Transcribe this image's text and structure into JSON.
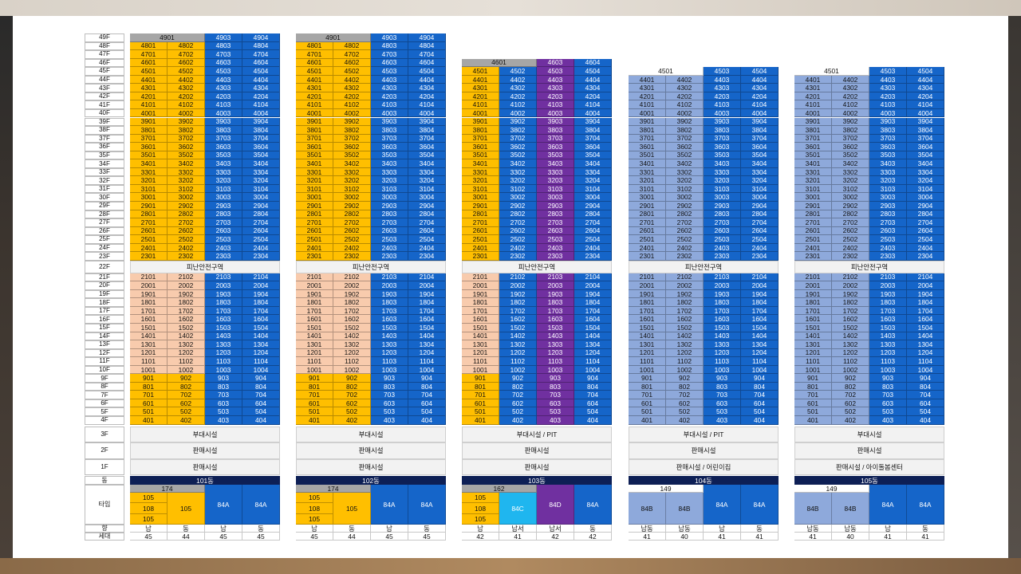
{
  "colors": {
    "yellow": "#ffbf00",
    "blue": "#1565c9",
    "gray": "#a6a6a6",
    "purple": "#7030a0",
    "cyan": "#1fb6ef",
    "lavender": "#8ea9db",
    "peach": "#f8cbad",
    "navy": "#0d1f55"
  },
  "floors": [
    "49F",
    "48F",
    "47F",
    "46F",
    "45F",
    "44F",
    "43F",
    "42F",
    "41F",
    "40F",
    "39F",
    "38F",
    "37F",
    "36F",
    "35F",
    "34F",
    "33F",
    "32F",
    "31F",
    "30F",
    "29F",
    "28F",
    "27F",
    "26F",
    "25F",
    "24F",
    "23F",
    "22F",
    "21F",
    "20F",
    "19F",
    "18F",
    "17F",
    "16F",
    "15F",
    "14F",
    "13F",
    "12F",
    "11F",
    "10F",
    "9F",
    "8F",
    "7F",
    "6F",
    "5F",
    "4F",
    "3F",
    "2F",
    "1F",
    "동",
    "타입",
    "향",
    "세대"
  ],
  "buildings": [
    {
      "name": "101동",
      "top_floor": 49,
      "top_label": "4901",
      "upper_colors": [
        "yellow",
        "yellow",
        "blue",
        "blue"
      ],
      "lower_colors": [
        "peach",
        "peach",
        "blue",
        "blue"
      ],
      "bottom_colors": [
        "yellow",
        "yellow",
        "blue",
        "blue"
      ],
      "refuge": "피난안전구역",
      "f3": "부대시설",
      "f2": "판매시설",
      "f1": "판매시설",
      "type_header": "174",
      "types": [
        [
          "105",
          "108",
          "105"
        ],
        [
          "105"
        ],
        [
          "84A"
        ],
        [
          "84A"
        ]
      ],
      "type_colors": [
        "yellow",
        "yellow",
        "blue",
        "blue"
      ],
      "directions": [
        "남",
        "동",
        "남",
        "동"
      ],
      "units": [
        "45",
        "44",
        "45",
        "45"
      ]
    },
    {
      "name": "102동",
      "top_floor": 49,
      "top_label": "4901",
      "upper_colors": [
        "yellow",
        "yellow",
        "blue",
        "blue"
      ],
      "lower_colors": [
        "peach",
        "peach",
        "blue",
        "blue"
      ],
      "bottom_colors": [
        "yellow",
        "yellow",
        "blue",
        "blue"
      ],
      "refuge": "피난안전구역",
      "f3": "부대시설",
      "f2": "판매시설",
      "f1": "판매시설",
      "type_header": "174",
      "types": [
        [
          "105",
          "108",
          "105"
        ],
        [
          "105"
        ],
        [
          "84A"
        ],
        [
          "84A"
        ]
      ],
      "type_colors": [
        "yellow",
        "yellow",
        "blue",
        "blue"
      ],
      "directions": [
        "남",
        "동",
        "남",
        "동"
      ],
      "units": [
        "45",
        "44",
        "45",
        "45"
      ]
    },
    {
      "name": "103동",
      "top_floor": 46,
      "top_label": "4601",
      "upper_colors": [
        "yellow",
        "blue",
        "purple",
        "blue"
      ],
      "lower_colors": [
        "peach",
        "blue",
        "purple",
        "blue"
      ],
      "bottom_colors": [
        "yellow",
        "blue",
        "purple",
        "blue"
      ],
      "refuge": "피난안전구역",
      "f3": "부대시설 / PIT",
      "f2": "판매시설",
      "f1": "판매시설",
      "type_header": "162",
      "types": [
        [
          "105",
          "108",
          "105"
        ],
        [
          "84C"
        ],
        [
          "84D"
        ],
        [
          "84A"
        ]
      ],
      "type_colors": [
        "yellow",
        "cyan",
        "purple",
        "blue"
      ],
      "directions": [
        "남",
        "남서",
        "남서",
        "동"
      ],
      "units": [
        "42",
        "41",
        "42",
        "42"
      ]
    },
    {
      "name": "104동",
      "top_floor": 45,
      "top_label": "4501",
      "upper_colors": [
        "lavender",
        "lavender",
        "blue",
        "blue"
      ],
      "lower_colors": [
        "lavender",
        "lavender",
        "blue",
        "blue"
      ],
      "bottom_colors": [
        "lavender",
        "lavender",
        "blue",
        "blue"
      ],
      "refuge": "피난안전구역",
      "f3": "부대시설 / PIT",
      "f2": "판매시설",
      "f1": "판매시설 / 어린이집",
      "type_header": "149",
      "types": [
        [
          "84B"
        ],
        [
          "84B"
        ],
        [
          "84A"
        ],
        [
          "84A"
        ]
      ],
      "type_colors": [
        "lavender",
        "lavender",
        "blue",
        "blue"
      ],
      "directions": [
        "남동",
        "남동",
        "남",
        "동"
      ],
      "units": [
        "41",
        "40",
        "41",
        "41"
      ]
    },
    {
      "name": "105동",
      "top_floor": 45,
      "top_label": "4501",
      "upper_colors": [
        "lavender",
        "lavender",
        "blue",
        "blue"
      ],
      "lower_colors": [
        "lavender",
        "lavender",
        "blue",
        "blue"
      ],
      "bottom_colors": [
        "lavender",
        "lavender",
        "blue",
        "blue"
      ],
      "refuge": "피난안전구역",
      "f3": "부대시설",
      "f2": "판매시설",
      "f1": "판매시설 / 아이돌봄센터",
      "type_header": "149",
      "types": [
        [
          "84B"
        ],
        [
          "84B"
        ],
        [
          "84A"
        ],
        [
          "84A"
        ]
      ],
      "type_colors": [
        "lavender",
        "lavender",
        "blue",
        "blue"
      ],
      "directions": [
        "남동",
        "남동",
        "남",
        "동"
      ],
      "units": [
        "41",
        "40",
        "41",
        "41"
      ]
    }
  ]
}
